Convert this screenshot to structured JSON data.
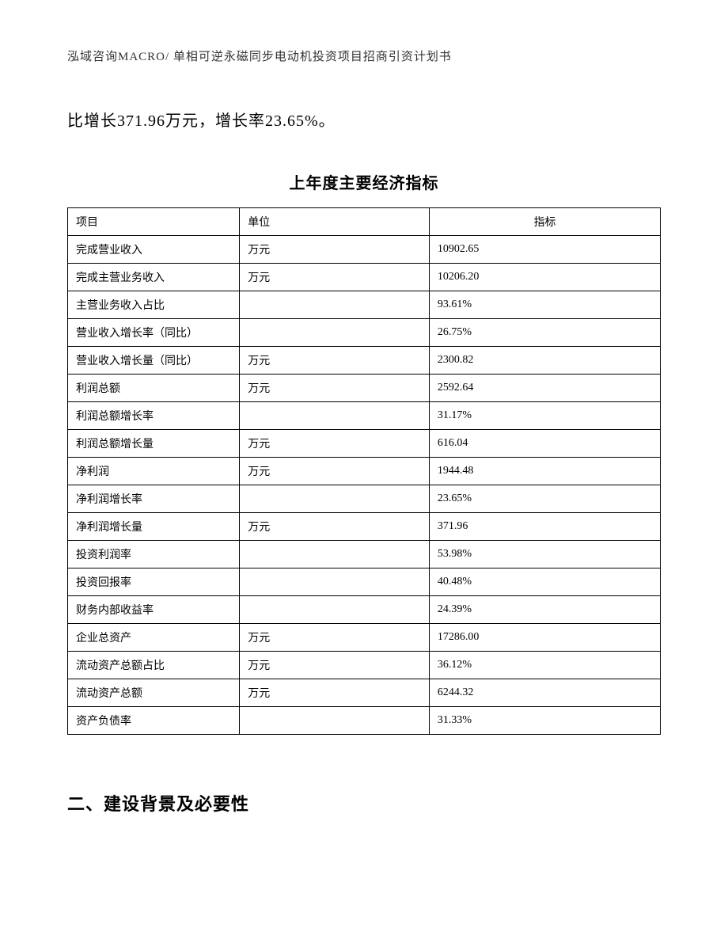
{
  "header": "泓域咨询MACRO/ 单相可逆永磁同步电动机投资项目招商引资计划书",
  "body_text": "比增长371.96万元，增长率23.65%。",
  "table": {
    "title": "上年度主要经济指标",
    "columns": [
      "项目",
      "单位",
      "指标"
    ],
    "col_align": [
      "left",
      "left",
      "center"
    ],
    "rows": [
      [
        "完成营业收入",
        "万元",
        "10902.65"
      ],
      [
        "完成主营业务收入",
        "万元",
        "10206.20"
      ],
      [
        "主营业务收入占比",
        "",
        "93.61%"
      ],
      [
        "营业收入增长率（同比）",
        "",
        "26.75%"
      ],
      [
        "营业收入增长量（同比）",
        "万元",
        "2300.82"
      ],
      [
        "利润总额",
        "万元",
        "2592.64"
      ],
      [
        "利润总额增长率",
        "",
        "31.17%"
      ],
      [
        "利润总额增长量",
        "万元",
        "616.04"
      ],
      [
        "净利润",
        "万元",
        "1944.48"
      ],
      [
        "净利润增长率",
        "",
        "23.65%"
      ],
      [
        "净利润增长量",
        "万元",
        "371.96"
      ],
      [
        "投资利润率",
        "",
        "53.98%"
      ],
      [
        "投资回报率",
        "",
        "40.48%"
      ],
      [
        "财务内部收益率",
        "",
        "24.39%"
      ],
      [
        "企业总资产",
        "万元",
        "17286.00"
      ],
      [
        "流动资产总额占比",
        "万元",
        "36.12%"
      ],
      [
        "流动资产总额",
        "万元",
        "6244.32"
      ],
      [
        "资产负债率",
        "",
        "31.33%"
      ]
    ]
  },
  "section_heading": "二、建设背景及必要性"
}
